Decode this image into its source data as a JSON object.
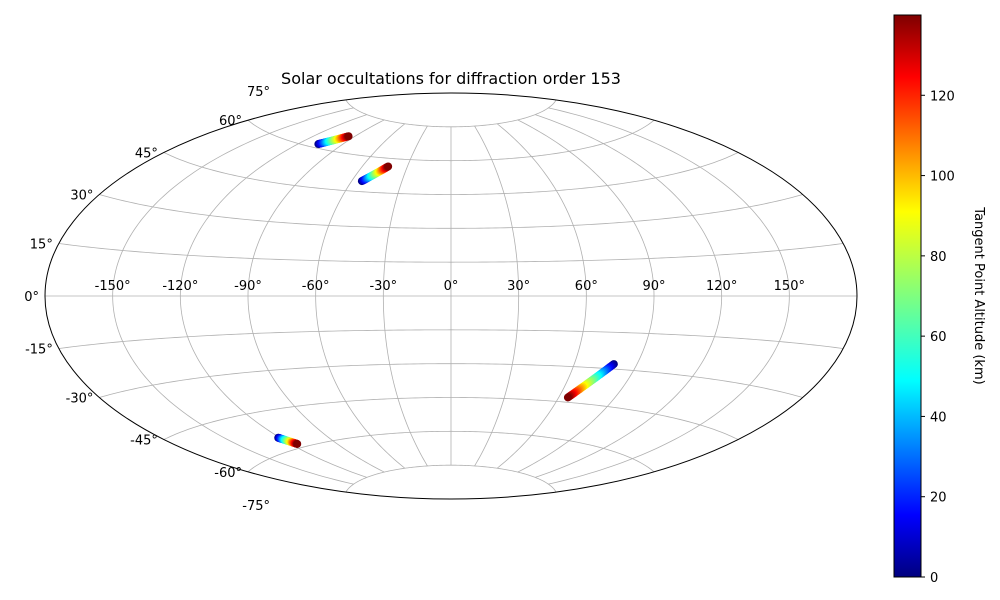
{
  "chart_data": {
    "type": "scatter",
    "projection": "aitoff",
    "title": "Solar occultations for diffraction order 153",
    "lon_ticks": [
      -150,
      -120,
      -90,
      -60,
      -30,
      0,
      30,
      60,
      90,
      120,
      150
    ],
    "lon_tick_labels": [
      "-150°",
      "-120°",
      "-90°",
      "-60°",
      "-30°",
      "0°",
      "30°",
      "60°",
      "90°",
      "120°",
      "150°"
    ],
    "lat_ticks": [
      75,
      60,
      45,
      30,
      15,
      0,
      -15,
      -30,
      -45,
      -60,
      -75
    ],
    "lat_tick_labels": [
      "75°",
      "60°",
      "45°",
      "30°",
      "15°",
      "0°",
      "-15°",
      "-30°",
      "-45°",
      "-60°",
      "-75°"
    ],
    "lon_range": [
      -180,
      180
    ],
    "lat_range": [
      -90,
      90
    ],
    "grid": true,
    "colormap": "jet",
    "colorbar": {
      "label": "Tangent Point Altitude (km)",
      "range": [
        0,
        140
      ],
      "ticks": [
        0,
        20,
        40,
        60,
        80,
        100,
        120
      ],
      "tick_labels": [
        "0",
        "20",
        "40",
        "60",
        "80",
        "100",
        "120"
      ]
    },
    "tracks": [
      {
        "lon_start": -107,
        "lat_start": 61.5,
        "alt_start": 0,
        "lon_end": -95,
        "lat_end": 66.5,
        "alt_end": 140
      },
      {
        "lon_start": -54,
        "lat_start": 49.5,
        "alt_start": 0,
        "lon_end": -43,
        "lat_end": 56.5,
        "alt_start_note": "",
        "alt_end": 140
      },
      {
        "lon_start": 79,
        "lat_start": -28,
        "alt_start": 0,
        "lon_end": 65,
        "lat_end": -43,
        "alt_end": 140
      },
      {
        "lon_start": -121,
        "lat_start": -55,
        "alt_start": 0,
        "lon_end": -116,
        "lat_end": -58.5,
        "alt_end": 140
      }
    ]
  }
}
